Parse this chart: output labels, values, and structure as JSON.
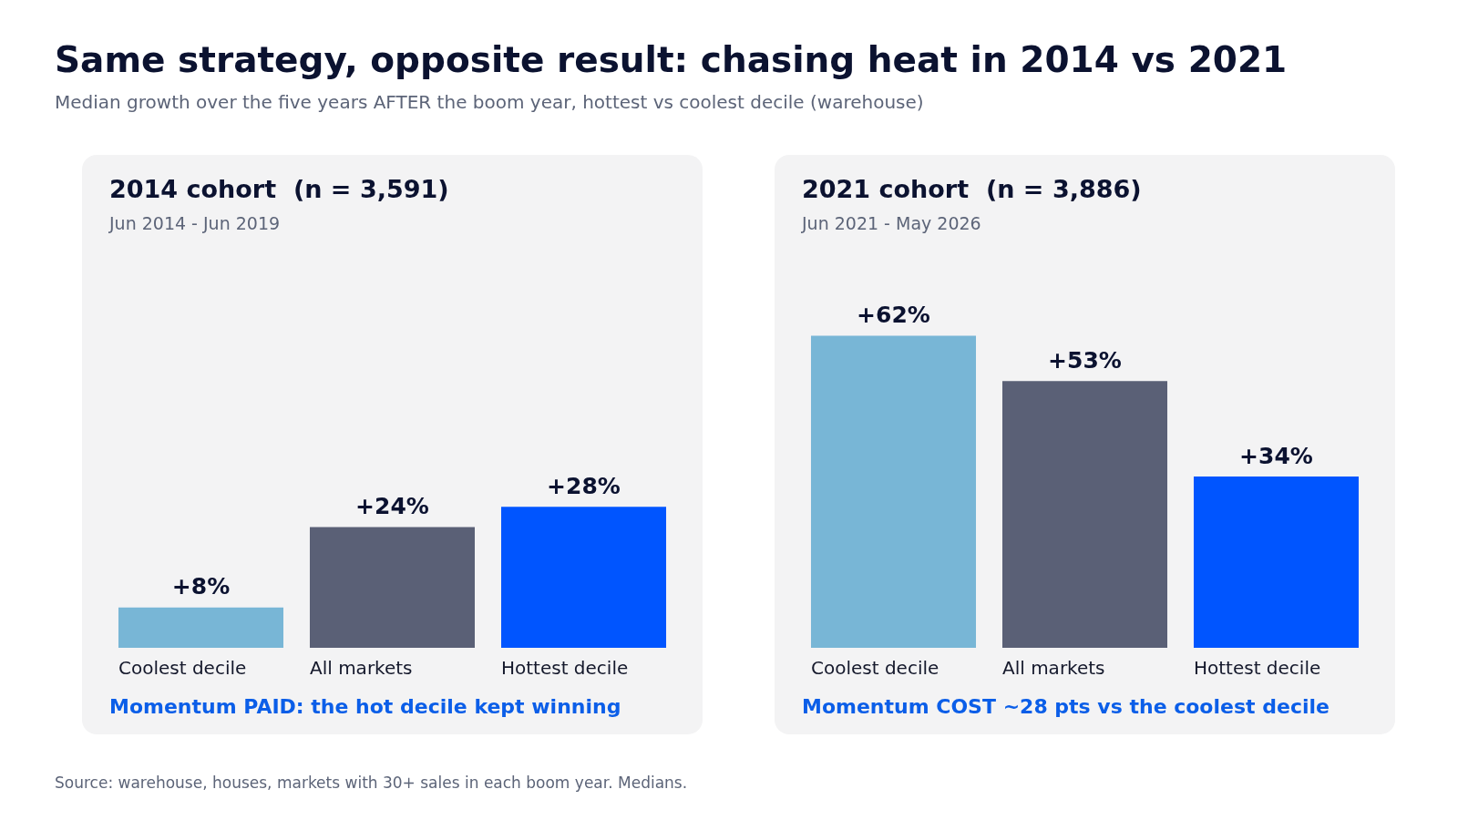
{
  "chart_data": [
    {
      "type": "other",
      "title": "Same strategy, opposite result: chasing heat in 2014 vs 2021",
      "subtitle": "Median growth over the five years AFTER the boom year, hottest vs coolest decile (warehouse)",
      "annotations": [
        "Source: warehouse, houses, markets with 30+ sales in each boom year. Medians."
      ]
    },
    {
      "type": "bar",
      "title": "2014 cohort  (n = 3,591)",
      "subtitle": "Jun 2014 - Jun 2019",
      "categories": [
        "Coolest decile",
        "All markets",
        "Hottest decile"
      ],
      "values": [
        8,
        24,
        28
      ],
      "colors": [
        "#78b6d6",
        "#5a6076",
        "#0055ff"
      ],
      "value_labels": [
        "+8%",
        "+24%",
        "+28%"
      ],
      "annotations": [
        "Momentum PAID: the hot decile kept winning"
      ]
    },
    {
      "type": "bar",
      "title": "2021 cohort  (n = 3,886)",
      "subtitle": "Jun 2021 - May 2026",
      "categories": [
        "Coolest decile",
        "All markets",
        "Hottest decile"
      ],
      "values": [
        62,
        53,
        34
      ],
      "colors": [
        "#78b6d6",
        "#5a6076",
        "#0055ff"
      ],
      "value_labels": [
        "+62%",
        "+53%",
        "+34%"
      ],
      "annotations": [
        "Momentum COST ~28 pts vs the coolest decile"
      ]
    }
  ]
}
